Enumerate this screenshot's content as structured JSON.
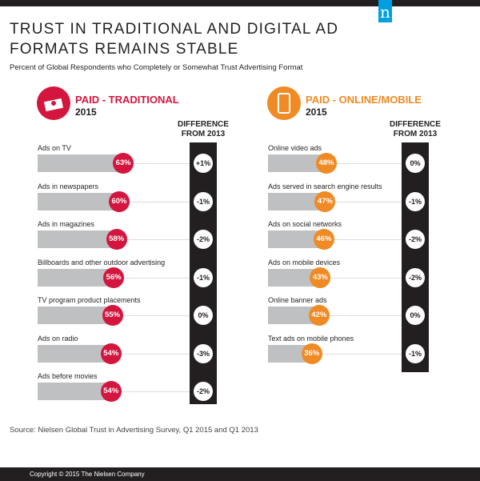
{
  "header": {
    "logo": "n",
    "title": "TRUST IN TRADITIONAL AND DIGITAL AD FORMATS REMAINS STABLE",
    "subtitle": "Percent of Global Respondents who Completely or Somewhat Trust Advertising Format"
  },
  "chart_data": [
    {
      "type": "bar",
      "title": "PAID - TRADITIONAL",
      "year": "2015",
      "diff_header": "DIFFERENCE FROM 2013",
      "color": "#d4163f",
      "icon": "money-icon",
      "categories": [
        "Ads on TV",
        "Ads in newspapers",
        "Ads in magazines",
        "Billboards and other outdoor advertising",
        "TV program product placements",
        "Ads on radio",
        "Ads before movies"
      ],
      "values": [
        63,
        60,
        58,
        56,
        55,
        54,
        54
      ],
      "value_labels": [
        "63%",
        "60%",
        "58%",
        "56%",
        "55%",
        "54%",
        "54%"
      ],
      "diff_labels": [
        "+1%",
        "-1%",
        "-2%",
        "-1%",
        "0%",
        "-3%",
        "-2%"
      ]
    },
    {
      "type": "bar",
      "title": "PAID - ONLINE/MOBILE",
      "year": "2015",
      "diff_header": "DIFFERENCE FROM 2013",
      "color": "#f08a24",
      "icon": "mobile-phone-icon",
      "categories": [
        "Online video ads",
        "Ads served in search engine results",
        "Ads on social networks",
        "Ads on mobile devices",
        "Online banner ads",
        "Text ads on mobile phones"
      ],
      "values": [
        48,
        47,
        46,
        43,
        42,
        36
      ],
      "value_labels": [
        "48%",
        "47%",
        "46%",
        "43%",
        "42%",
        "36%"
      ],
      "diff_labels": [
        "0%",
        "-1%",
        "-2%",
        "-2%",
        "0%",
        "-1%"
      ]
    }
  ],
  "source": "Source: Nielsen Global Trust in Advertising Survey, Q1 2015 and Q1 2013",
  "footer": "Copyright © 2015 The Nielsen Company"
}
